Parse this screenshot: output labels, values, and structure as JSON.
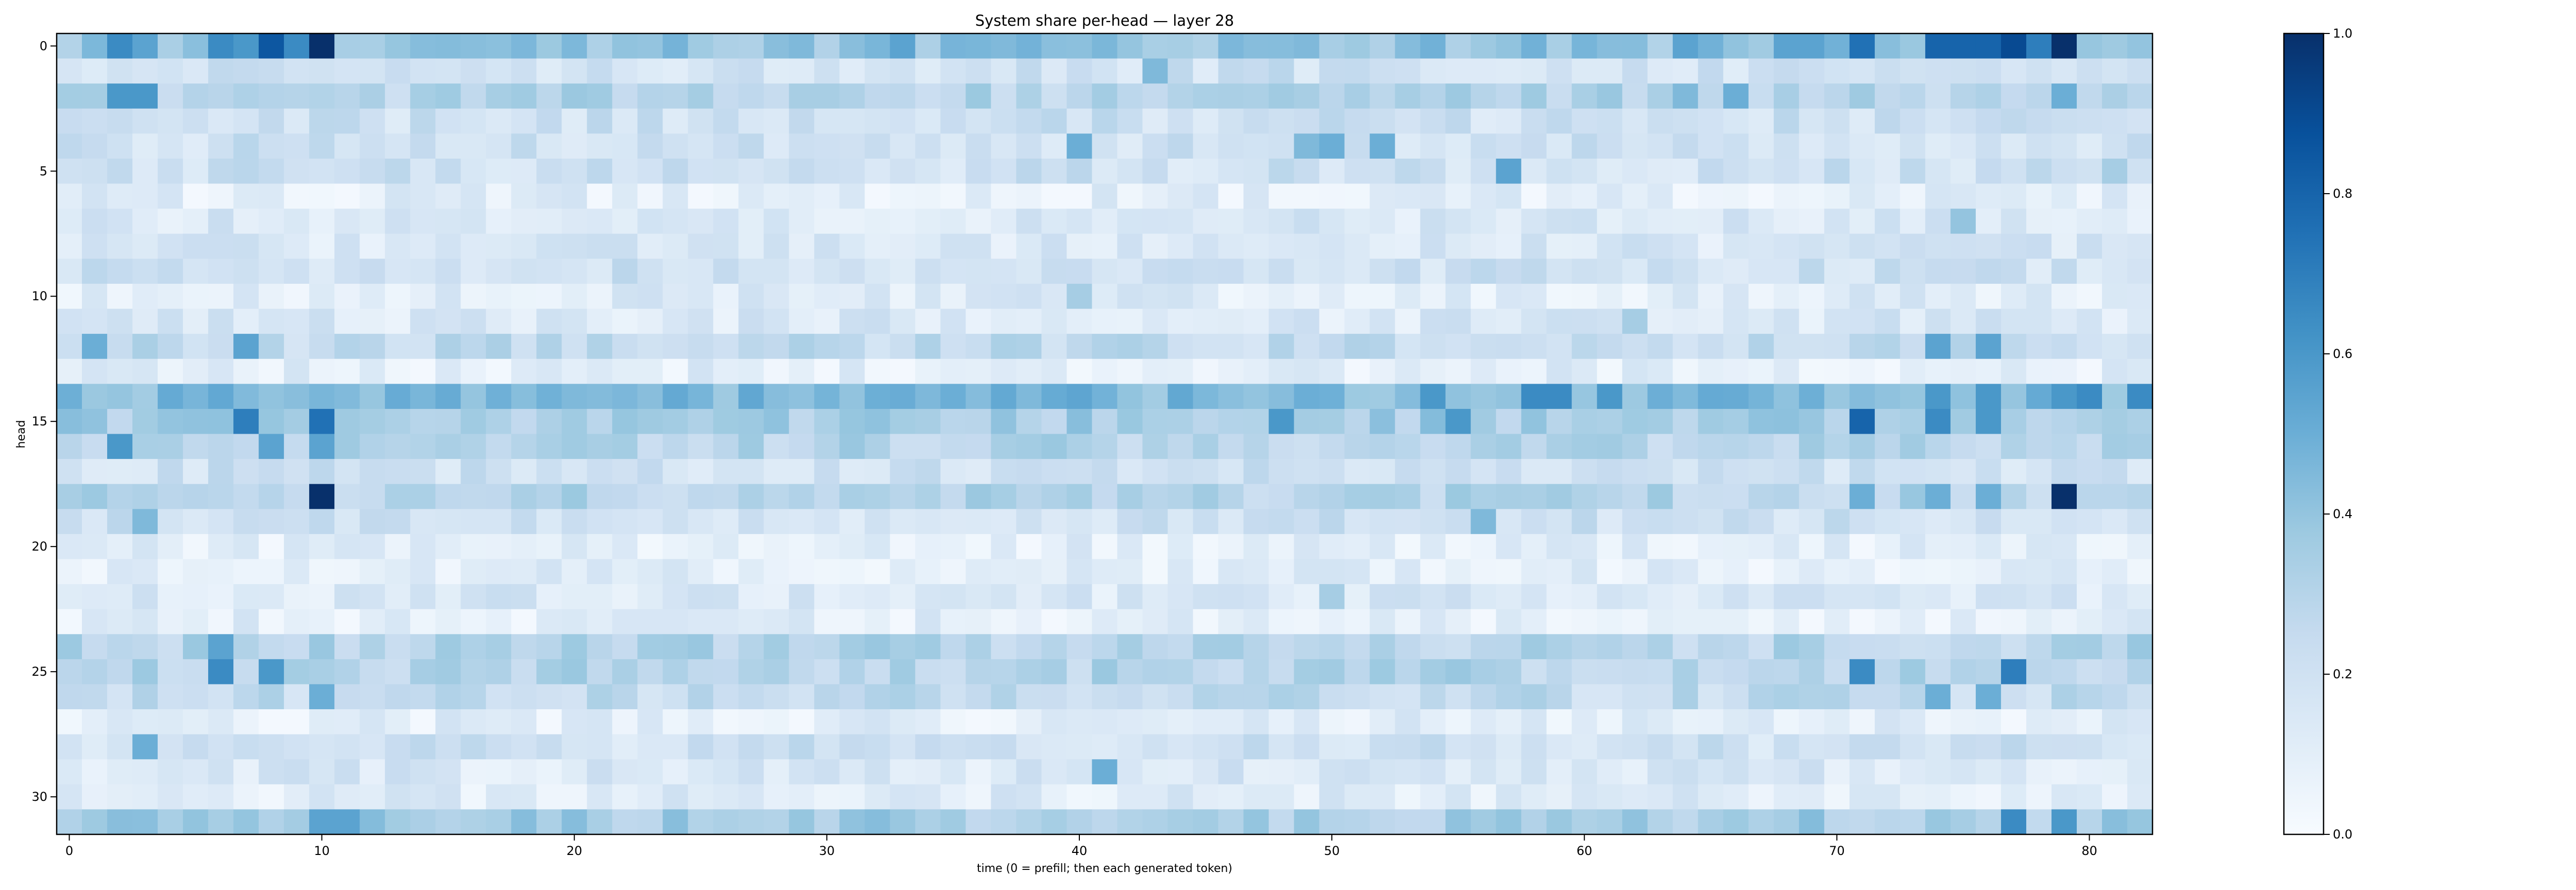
{
  "chart_data": {
    "type": "heatmap",
    "title": "System share per-head — layer 28",
    "xlabel": "time (0 = prefill; then each generated token)",
    "ylabel": "head",
    "x_range": [
      0,
      82
    ],
    "y_range": [
      0,
      31
    ],
    "x_ticks": [
      0,
      10,
      20,
      30,
      40,
      50,
      60,
      70,
      80
    ],
    "y_ticks": [
      0,
      5,
      10,
      15,
      20,
      25,
      30
    ],
    "colorbar": {
      "min": 0.0,
      "max": 1.0,
      "ticks": [
        "0.0",
        "0.2",
        "0.4",
        "0.6",
        "0.8",
        "1.0"
      ],
      "colormap": "Blues"
    },
    "colormap_stops": [
      "#f7fbff",
      "#deebf7",
      "#c6dbef",
      "#9ecae1",
      "#6baed6",
      "#4292c6",
      "#2171b5",
      "#08519c",
      "#08306b"
    ],
    "row_profiles": [
      {
        "head": 0,
        "base": 0.4,
        "peaks": [
          [
            2,
            0.65
          ],
          [
            3,
            0.55
          ],
          [
            6,
            0.65
          ],
          [
            7,
            0.6
          ],
          [
            8,
            0.85
          ],
          [
            9,
            0.65
          ],
          [
            10,
            1.0
          ],
          [
            23,
            0.4
          ],
          [
            33,
            0.55
          ],
          [
            64,
            0.55
          ],
          [
            68,
            0.55
          ],
          [
            69,
            0.55
          ],
          [
            71,
            0.75
          ],
          [
            74,
            0.8
          ],
          [
            75,
            0.8
          ],
          [
            76,
            0.8
          ],
          [
            77,
            0.9
          ],
          [
            78,
            0.7
          ],
          [
            79,
            1.0
          ]
        ]
      },
      {
        "head": 1,
        "base": 0.2,
        "peaks": [
          [
            43,
            0.45
          ]
        ]
      },
      {
        "head": 2,
        "base": 0.3,
        "peaks": [
          [
            2,
            0.6
          ],
          [
            3,
            0.6
          ],
          [
            64,
            0.45
          ],
          [
            66,
            0.5
          ],
          [
            79,
            0.5
          ]
        ]
      },
      {
        "head": 3,
        "base": 0.2,
        "peaks": []
      },
      {
        "head": 4,
        "base": 0.2,
        "peaks": [
          [
            40,
            0.5
          ],
          [
            49,
            0.45
          ],
          [
            50,
            0.5
          ],
          [
            52,
            0.5
          ]
        ]
      },
      {
        "head": 5,
        "base": 0.2,
        "peaks": [
          [
            57,
            0.55
          ],
          [
            81,
            0.35
          ]
        ]
      },
      {
        "head": 6,
        "base": 0.1,
        "peaks": []
      },
      {
        "head": 7,
        "base": 0.15,
        "peaks": [
          [
            75,
            0.4
          ]
        ]
      },
      {
        "head": 8,
        "base": 0.15,
        "peaks": []
      },
      {
        "head": 9,
        "base": 0.2,
        "peaks": []
      },
      {
        "head": 10,
        "base": 0.12,
        "peaks": [
          [
            40,
            0.35
          ]
        ]
      },
      {
        "head": 11,
        "base": 0.15,
        "peaks": [
          [
            62,
            0.35
          ]
        ]
      },
      {
        "head": 12,
        "base": 0.25,
        "peaks": [
          [
            1,
            0.5
          ],
          [
            7,
            0.55
          ],
          [
            74,
            0.55
          ],
          [
            76,
            0.55
          ]
        ]
      },
      {
        "head": 13,
        "base": 0.1,
        "peaks": []
      },
      {
        "head": 14,
        "base": 0.45,
        "peaks": [
          [
            54,
            0.6
          ],
          [
            58,
            0.65
          ],
          [
            59,
            0.65
          ],
          [
            61,
            0.6
          ],
          [
            74,
            0.6
          ],
          [
            76,
            0.6
          ],
          [
            79,
            0.6
          ],
          [
            80,
            0.65
          ],
          [
            82,
            0.65
          ]
        ]
      },
      {
        "head": 15,
        "base": 0.35,
        "peaks": [
          [
            7,
            0.7
          ],
          [
            10,
            0.75
          ],
          [
            48,
            0.6
          ],
          [
            55,
            0.6
          ],
          [
            71,
            0.8
          ],
          [
            74,
            0.65
          ],
          [
            76,
            0.6
          ]
        ]
      },
      {
        "head": 16,
        "base": 0.3,
        "peaks": [
          [
            2,
            0.6
          ],
          [
            8,
            0.55
          ],
          [
            10,
            0.55
          ]
        ]
      },
      {
        "head": 17,
        "base": 0.2,
        "peaks": []
      },
      {
        "head": 18,
        "base": 0.3,
        "peaks": [
          [
            10,
            1.0
          ],
          [
            79,
            1.0
          ],
          [
            71,
            0.5
          ],
          [
            74,
            0.5
          ],
          [
            76,
            0.5
          ]
        ]
      },
      {
        "head": 19,
        "base": 0.2,
        "peaks": [
          [
            3,
            0.45
          ],
          [
            56,
            0.45
          ]
        ]
      },
      {
        "head": 20,
        "base": 0.1,
        "peaks": []
      },
      {
        "head": 21,
        "base": 0.1,
        "peaks": []
      },
      {
        "head": 22,
        "base": 0.15,
        "peaks": [
          [
            50,
            0.35
          ]
        ]
      },
      {
        "head": 23,
        "base": 0.1,
        "peaks": []
      },
      {
        "head": 24,
        "base": 0.3,
        "peaks": [
          [
            6,
            0.55
          ]
        ]
      },
      {
        "head": 25,
        "base": 0.3,
        "peaks": [
          [
            6,
            0.65
          ],
          [
            8,
            0.6
          ],
          [
            71,
            0.65
          ],
          [
            77,
            0.7
          ]
        ]
      },
      {
        "head": 26,
        "base": 0.25,
        "peaks": [
          [
            10,
            0.5
          ],
          [
            74,
            0.5
          ],
          [
            76,
            0.5
          ]
        ]
      },
      {
        "head": 27,
        "base": 0.1,
        "peaks": []
      },
      {
        "head": 28,
        "base": 0.2,
        "peaks": [
          [
            3,
            0.5
          ]
        ]
      },
      {
        "head": 29,
        "base": 0.15,
        "peaks": [
          [
            41,
            0.5
          ]
        ]
      },
      {
        "head": 30,
        "base": 0.12,
        "peaks": []
      },
      {
        "head": 31,
        "base": 0.35,
        "peaks": [
          [
            10,
            0.55
          ],
          [
            11,
            0.55
          ],
          [
            77,
            0.65
          ],
          [
            79,
            0.6
          ]
        ]
      }
    ]
  }
}
